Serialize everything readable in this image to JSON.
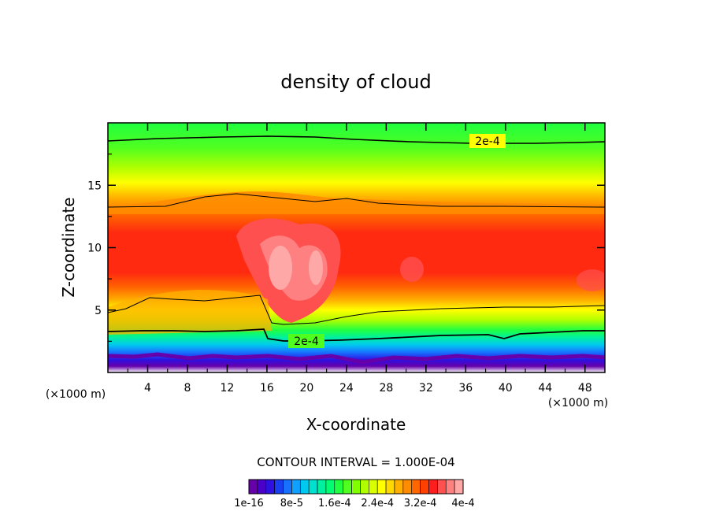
{
  "chart_data": {
    "type": "heatmap",
    "title": "density of cloud",
    "xlabel": "X-coordinate",
    "ylabel": "Z-coordinate",
    "x_unit_left": "(×1000 m)",
    "x_unit_right": "(×1000 m)",
    "xlim": [
      0,
      50
    ],
    "ylim": [
      0,
      20
    ],
    "x_ticks": [
      "4",
      "8",
      "12",
      "16",
      "20",
      "24",
      "28",
      "32",
      "36",
      "40",
      "44",
      "48"
    ],
    "y_ticks": [
      "5",
      "10",
      "15"
    ],
    "contour_interval_text": "CONTOUR INTERVAL = 1.000E-04",
    "contour_line_labels": [
      "2e-4",
      "2e-4"
    ],
    "colorbar": {
      "labels": [
        "1e-16",
        "8e-5",
        "1.6e-4",
        "2.4e-4",
        "3.2e-4",
        "4e-4"
      ],
      "colors": [
        "#6600aa",
        "#4b00c8",
        "#2e10e0",
        "#1840f0",
        "#1870ff",
        "#10a0ff",
        "#00c8f0",
        "#00e0d0",
        "#00f0a0",
        "#00ff70",
        "#20ff40",
        "#50ff20",
        "#80ff00",
        "#b0ff00",
        "#d8ff00",
        "#ffff00",
        "#ffd800",
        "#ffb000",
        "#ff8c00",
        "#ff6600",
        "#ff4000",
        "#ff1e1e",
        "#ff5050",
        "#ff8080",
        "#ffa8a8"
      ]
    },
    "grid": false,
    "legend": "bottom"
  }
}
